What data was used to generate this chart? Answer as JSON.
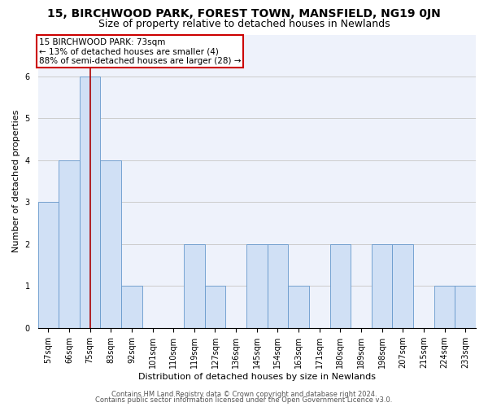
{
  "title": "15, BIRCHWOOD PARK, FOREST TOWN, MANSFIELD, NG19 0JN",
  "subtitle": "Size of property relative to detached houses in Newlands",
  "xlabel": "Distribution of detached houses by size in Newlands",
  "ylabel": "Number of detached properties",
  "bins": [
    "57sqm",
    "66sqm",
    "75sqm",
    "83sqm",
    "92sqm",
    "101sqm",
    "110sqm",
    "119sqm",
    "127sqm",
    "136sqm",
    "145sqm",
    "154sqm",
    "163sqm",
    "171sqm",
    "180sqm",
    "189sqm",
    "198sqm",
    "207sqm",
    "215sqm",
    "224sqm",
    "233sqm"
  ],
  "values": [
    3,
    4,
    6,
    4,
    1,
    0,
    0,
    2,
    1,
    0,
    2,
    2,
    1,
    0,
    2,
    0,
    2,
    2,
    0,
    1,
    1
  ],
  "bar_color": "#d0e0f5",
  "bar_edge_color": "#6699cc",
  "red_line_x": 2.0,
  "annotation_text": "15 BIRCHWOOD PARK: 73sqm\n← 13% of detached houses are smaller (4)\n88% of semi-detached houses are larger (28) →",
  "annotation_box_color": "white",
  "annotation_box_edge_color": "#cc0000",
  "red_line_color": "#aa0000",
  "ylim": [
    0,
    7
  ],
  "yticks": [
    0,
    1,
    2,
    3,
    4,
    5,
    6
  ],
  "grid_color": "#cccccc",
  "background_color": "#eef2fb",
  "footer1": "Contains HM Land Registry data © Crown copyright and database right 2024.",
  "footer2": "Contains public sector information licensed under the Open Government Licence v3.0.",
  "title_fontsize": 10,
  "subtitle_fontsize": 9,
  "xlabel_fontsize": 8,
  "ylabel_fontsize": 8,
  "tick_fontsize": 7,
  "annotation_fontsize": 7.5,
  "footer_fontsize": 6
}
